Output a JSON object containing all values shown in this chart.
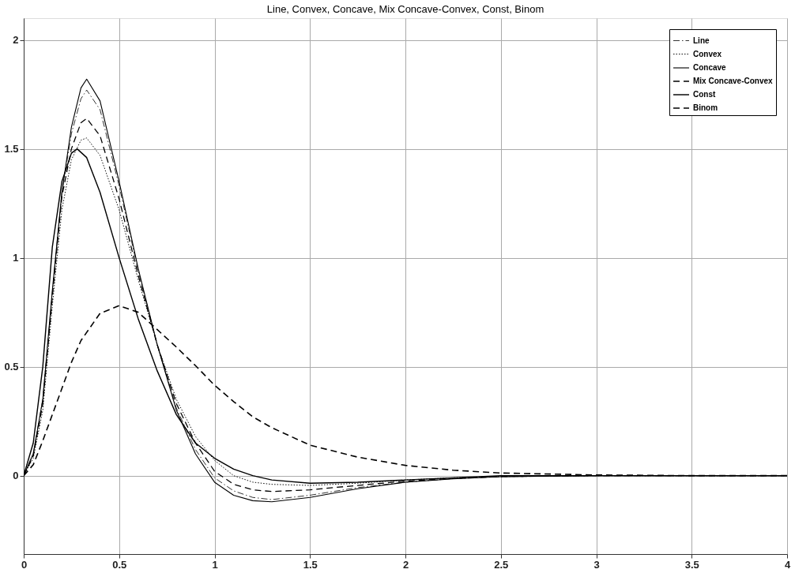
{
  "chart_data": {
    "type": "line",
    "title": "Line, Convex, Concave, Mix Concave-Convex, Const, Binom",
    "xlim": [
      0,
      4
    ],
    "xticks": [
      0,
      0.5,
      1,
      1.5,
      2,
      2.5,
      3,
      3.5,
      4
    ],
    "ylim": [
      -0.36,
      2.1
    ],
    "yticks": [
      0,
      0.5,
      1,
      1.5,
      2
    ],
    "grid": true,
    "legend": "top right",
    "series": [
      {
        "name": "Line",
        "color": "#000000",
        "line_style": "dashdot",
        "x": [
          0,
          0.05,
          0.1,
          0.15,
          0.2,
          0.25,
          0.3,
          0.33,
          0.4,
          0.5,
          0.6,
          0.7,
          0.8,
          0.9,
          1,
          1.1,
          1.2,
          1.3,
          1.5,
          1.75,
          2,
          2.25,
          2.5,
          3,
          3.5,
          4
        ],
        "values": [
          0,
          0.1,
          0.35,
          0.84,
          1.3,
          1.57,
          1.73,
          1.77,
          1.68,
          1.33,
          0.94,
          0.6,
          0.31,
          0.12,
          -0.01,
          -0.07,
          -0.1,
          -0.11,
          -0.09,
          -0.055,
          -0.03,
          -0.014,
          -0.005,
          0,
          0,
          0
        ]
      },
      {
        "name": "Convex",
        "color": "#000000",
        "line_style": "dotted",
        "x": [
          0,
          0.05,
          0.1,
          0.15,
          0.2,
          0.25,
          0.3,
          0.33,
          0.4,
          0.5,
          0.6,
          0.7,
          0.8,
          0.9,
          1,
          1.1,
          1.2,
          1.3,
          1.5,
          1.75,
          2,
          2.25,
          2.5,
          3,
          3.5,
          4
        ],
        "values": [
          0,
          0.08,
          0.3,
          0.78,
          1.22,
          1.45,
          1.54,
          1.55,
          1.47,
          1.22,
          0.9,
          0.6,
          0.35,
          0.18,
          0.07,
          0,
          -0.03,
          -0.04,
          -0.045,
          -0.035,
          -0.02,
          -0.01,
          -0.004,
          0,
          0,
          0
        ]
      },
      {
        "name": "Concave",
        "color": "#000000",
        "line_style": "solid",
        "x": [
          0,
          0.05,
          0.1,
          0.15,
          0.2,
          0.25,
          0.3,
          0.33,
          0.4,
          0.5,
          0.6,
          0.7,
          0.8,
          0.9,
          1,
          1.1,
          1.2,
          1.3,
          1.5,
          1.75,
          2,
          2.25,
          2.5,
          3,
          3.5,
          4
        ],
        "values": [
          0,
          0.1,
          0.35,
          0.85,
          1.3,
          1.6,
          1.78,
          1.82,
          1.72,
          1.35,
          0.95,
          0.6,
          0.3,
          0.1,
          -0.03,
          -0.09,
          -0.115,
          -0.12,
          -0.1,
          -0.06,
          -0.03,
          -0.015,
          -0.005,
          0,
          0,
          0
        ]
      },
      {
        "name": "Mix Concave-Convex",
        "color": "#000000",
        "line_style": "dashed",
        "x": [
          0,
          0.05,
          0.1,
          0.15,
          0.2,
          0.25,
          0.3,
          0.33,
          0.4,
          0.5,
          0.6,
          0.7,
          0.8,
          0.9,
          1,
          1.1,
          1.2,
          1.3,
          1.5,
          1.75,
          2,
          2.25,
          2.5,
          3,
          3.5,
          4
        ],
        "values": [
          0,
          0.09,
          0.33,
          0.82,
          1.28,
          1.5,
          1.62,
          1.64,
          1.56,
          1.27,
          0.92,
          0.6,
          0.33,
          0.15,
          0.02,
          -0.04,
          -0.065,
          -0.073,
          -0.065,
          -0.045,
          -0.025,
          -0.012,
          -0.004,
          0,
          0,
          0
        ]
      },
      {
        "name": "Const",
        "color": "#000000",
        "line_style": "solid",
        "x": [
          0,
          0.05,
          0.1,
          0.15,
          0.2,
          0.25,
          0.28,
          0.33,
          0.4,
          0.5,
          0.6,
          0.7,
          0.8,
          0.9,
          1,
          1.1,
          1.2,
          1.3,
          1.5,
          1.75,
          2,
          2.25,
          2.5,
          3,
          3.5,
          4
        ],
        "values": [
          0,
          0.15,
          0.5,
          1.05,
          1.35,
          1.48,
          1.5,
          1.46,
          1.3,
          1.0,
          0.72,
          0.48,
          0.28,
          0.15,
          0.08,
          0.03,
          0,
          -0.02,
          -0.035,
          -0.03,
          -0.02,
          -0.01,
          0,
          0,
          0,
          0
        ]
      },
      {
        "name": "Binom",
        "color": "#000000",
        "line_style": "dashed",
        "x": [
          0,
          0.05,
          0.1,
          0.15,
          0.2,
          0.25,
          0.3,
          0.4,
          0.5,
          0.6,
          0.7,
          0.8,
          0.9,
          1,
          1.1,
          1.2,
          1.3,
          1.5,
          1.75,
          2,
          2.25,
          2.5,
          3,
          3.5,
          4
        ],
        "values": [
          0,
          0.05,
          0.16,
          0.28,
          0.4,
          0.52,
          0.62,
          0.745,
          0.78,
          0.75,
          0.67,
          0.59,
          0.505,
          0.415,
          0.34,
          0.27,
          0.22,
          0.14,
          0.085,
          0.047,
          0.025,
          0.012,
          0.003,
          0,
          0
        ]
      }
    ]
  }
}
